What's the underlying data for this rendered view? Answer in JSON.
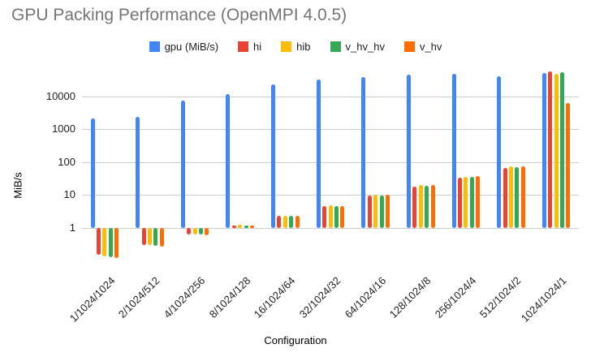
{
  "title": "GPU Packing Performance (OpenMPI 4.0.5)",
  "axes": {
    "y_title": "MiB/s",
    "x_title": "Configuration",
    "y_tick_labels": [
      "1",
      "10",
      "100",
      "1000",
      "10000"
    ]
  },
  "chart_data": {
    "type": "bar",
    "title": "GPU Packing Performance (OpenMPI 4.0.5)",
    "xlabel": "Configuration",
    "ylabel": "MiB/s",
    "y_scale": "log",
    "y_ticks": [
      1,
      10,
      100,
      1000,
      10000
    ],
    "ylim": [
      0.1,
      67000
    ],
    "grid": true,
    "legend_position": "top",
    "baseline": 1,
    "categories": [
      "1/1024/1024",
      "2/1024/512",
      "4/1024/256",
      "8/1024/128",
      "16/1024/64",
      "32/1024/32",
      "64/1024/16",
      "128/1024/8",
      "256/1024/4",
      "512/1024/2",
      "1024/1024/1"
    ],
    "series": [
      {
        "name": "gpu (MiB/s)",
        "color": "#4285F4",
        "values": [
          2100,
          2400,
          7500,
          11500,
          23000,
          33000,
          39000,
          44000,
          48000,
          41000,
          52000
        ]
      },
      {
        "name": "hi",
        "color": "#EA4335",
        "values": [
          0.15,
          0.3,
          0.65,
          1.2,
          2.3,
          4.5,
          9.5,
          18,
          33,
          68,
          57000
        ]
      },
      {
        "name": "hib",
        "color": "#FBBC04",
        "values": [
          0.14,
          0.3,
          0.65,
          1.25,
          2.4,
          4.8,
          10,
          20,
          36,
          75,
          49000
        ]
      },
      {
        "name": "v_hv_hv",
        "color": "#34A853",
        "values": [
          0.13,
          0.28,
          0.62,
          1.2,
          2.3,
          4.6,
          9.7,
          19,
          36,
          71,
          54000
        ]
      },
      {
        "name": "v_hv",
        "color": "#FF6D01",
        "values": [
          0.125,
          0.27,
          0.6,
          1.2,
          2.3,
          4.7,
          10,
          20,
          37,
          75,
          6300
        ]
      }
    ]
  },
  "style": {
    "title_color": "#757575",
    "text_color": "#202124",
    "gridline_color": "#cccccc"
  }
}
